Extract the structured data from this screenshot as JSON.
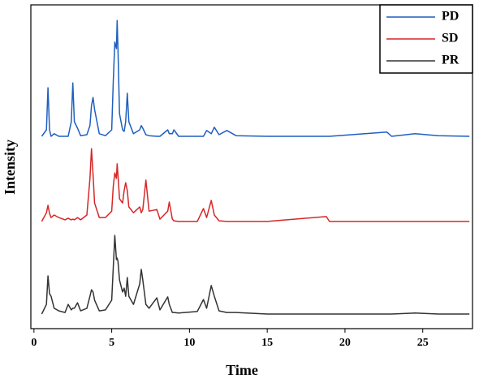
{
  "chart_data": {
    "type": "line",
    "xlabel": "Time",
    "ylabel": "Intensity",
    "x": [
      0.5,
      0.8,
      0.9,
      1.0,
      1.1,
      1.3,
      1.6,
      2.0,
      2.2,
      2.4,
      2.5,
      2.6,
      2.8,
      3.0,
      3.4,
      3.6,
      3.7,
      3.8,
      3.9,
      4.2,
      4.6,
      5.0,
      5.1,
      5.2,
      5.3,
      5.35,
      5.4,
      5.5,
      5.7,
      5.8,
      5.9,
      6.0,
      6.1,
      6.4,
      6.8,
      6.9,
      7.0,
      7.2,
      7.4,
      7.9,
      8.1,
      8.6,
      8.7,
      8.9,
      9.0,
      9.3,
      10.5,
      10.9,
      11.1,
      11.4,
      11.6,
      11.9,
      12.4,
      13,
      15,
      18.8,
      19,
      22.7,
      23,
      24.5,
      26,
      28
    ],
    "series": [
      {
        "name": "PD",
        "color": "#1f5fbf",
        "values": [
          59.4,
          61.4,
          74.4,
          61.4,
          59.4,
          60.2,
          59.4,
          59.4,
          59.4,
          63.9,
          75.9,
          63.9,
          61.9,
          59.6,
          59.9,
          62.7,
          68.9,
          71.4,
          67.7,
          60.2,
          59.6,
          61.4,
          76.2,
          88.5,
          86.5,
          95.2,
          86.5,
          66.4,
          61.4,
          60.9,
          63.9,
          72.7,
          63.9,
          60.2,
          61.4,
          62.7,
          61.9,
          59.9,
          59.6,
          59.4,
          59.4,
          61.4,
          60.2,
          60.2,
          61.4,
          59.4,
          59.4,
          59.4,
          61.2,
          60.2,
          62.2,
          59.9,
          61.2,
          59.6,
          59.4,
          59.4,
          59.4,
          60.7,
          59.4,
          60.2,
          59.6,
          59.4
        ]
      },
      {
        "name": "SD",
        "color": "#d62728",
        "values": [
          33.1,
          35.8,
          38.1,
          35.6,
          34.3,
          35.1,
          34.3,
          33.6,
          34.1,
          33.6,
          33.8,
          33.6,
          34.3,
          33.6,
          35.1,
          46.4,
          55.6,
          47.6,
          38.8,
          34.3,
          34.3,
          36.3,
          43.9,
          48.1,
          46.4,
          50.9,
          47.6,
          40.1,
          38.8,
          42.6,
          45.1,
          42.6,
          37.6,
          35.8,
          37.6,
          35.8,
          36.8,
          45.9,
          36.3,
          36.8,
          33.8,
          36.3,
          39.1,
          33.8,
          33.3,
          33.1,
          33.1,
          37.1,
          34.3,
          39.6,
          35.1,
          33.3,
          33.1,
          33.1,
          33.1,
          34.6,
          33.1,
          33.1,
          33.1,
          33.1,
          33.1,
          33.1
        ]
      },
      {
        "name": "PR",
        "color": "#333333",
        "values": [
          4.5,
          7.5,
          16.3,
          10.8,
          10.0,
          6.3,
          5.5,
          5.0,
          7.5,
          5.8,
          6.3,
          6.3,
          8.0,
          5.5,
          6.3,
          10.0,
          12.0,
          11.3,
          8.8,
          5.5,
          5.8,
          8.8,
          18.8,
          28.8,
          21.3,
          21.8,
          20.8,
          15.0,
          11.3,
          12.5,
          10.0,
          15.8,
          10.0,
          7.5,
          13.8,
          18.3,
          15.0,
          7.5,
          6.3,
          9.5,
          5.8,
          9.8,
          7.5,
          5.0,
          5.0,
          4.8,
          5.3,
          9.0,
          6.3,
          13.3,
          10.0,
          5.5,
          5.0,
          5.0,
          4.5,
          4.5,
          4.5,
          4.5,
          4.5,
          4.8,
          4.5,
          4.5
        ]
      }
    ],
    "xlim": [
      -0.2,
      28.2
    ],
    "xticks": [
      0,
      5,
      10,
      15,
      20,
      25
    ],
    "ylim": [
      0,
      100
    ],
    "legend": "upper right"
  }
}
